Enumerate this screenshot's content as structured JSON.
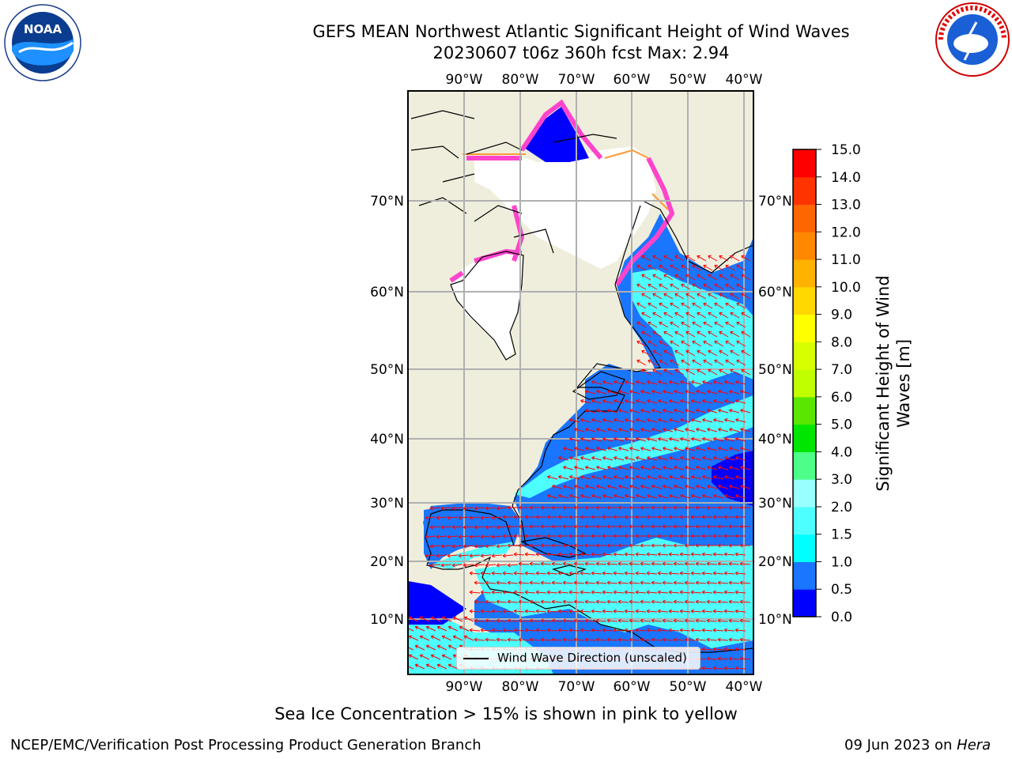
{
  "header": {
    "title_line1": "GEFS MEAN Northwest Atlantic Significant Height of Wind Waves",
    "title_line2": "20230607 t06z 360h fcst   Max: 2.94"
  },
  "logos": {
    "noaa": "NOAA",
    "noaa_ring": "NATIONAL OCEANIC AND ATMOSPHERIC ADMINISTRATION · U.S. DEPARTMENT OF COMMERCE",
    "nws_ring": "NATIONAL WEATHER SERVICE"
  },
  "map": {
    "lon_labels": [
      "90°W",
      "80°W",
      "70°W",
      "60°W",
      "50°W",
      "40°W"
    ],
    "lat_labels": [
      "70°N",
      "60°N",
      "50°N",
      "40°N",
      "30°N",
      "20°N",
      "10°N"
    ],
    "legend_label": "Wind Wave Direction (unscaled)",
    "colors": {
      "land": "#efeedd",
      "ice_free": "#ffffff",
      "grid": "#b0b0b0",
      "arrows": "#ff0000"
    }
  },
  "colorbar": {
    "label_line1": "Significant Height of Wind",
    "label_line2": "Waves [m]",
    "ticks": [
      "0.0",
      "0.5",
      "1.0",
      "1.5",
      "2.0",
      "3.0",
      "4.0",
      "5.0",
      "6.0",
      "7.0",
      "8.0",
      "9.0",
      "10.0",
      "11.0",
      "12.0",
      "13.0",
      "14.0",
      "15.0"
    ],
    "colors": [
      "#0000ff",
      "#1a75ff",
      "#00ffff",
      "#4dffff",
      "#9affff",
      "#4dff88",
      "#00e600",
      "#5ae600",
      "#c0ff00",
      "#d8ff00",
      "#ffff00",
      "#ffd800",
      "#ffb300",
      "#ff8800",
      "#ff6600",
      "#ff3300",
      "#ff0000"
    ]
  },
  "footer": {
    "ice_note": "Sea Ice Concentration > 15% is shown in pink to yellow",
    "credit": "NCEP/EMC/Verification Post Processing Product Generation Branch",
    "date": "09 Jun 2023 on ",
    "machine": "Hera"
  }
}
